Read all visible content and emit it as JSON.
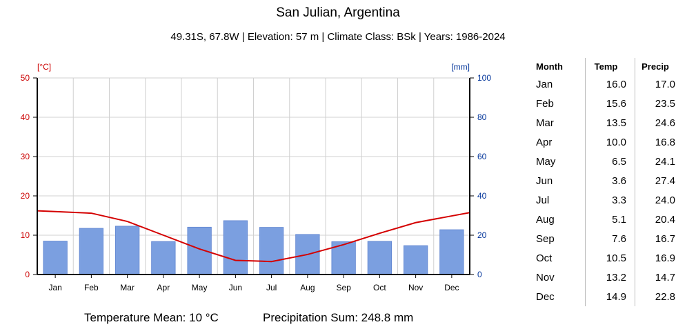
{
  "chart_data": {
    "type": "bar",
    "title": "San Julian, Argentina",
    "subtitle": "49.31S, 67.8W | Elevation: 57 m | Climate Class: BSk | Years: 1986-2024",
    "categories": [
      "Jan",
      "Feb",
      "Mar",
      "Apr",
      "May",
      "Jun",
      "Jul",
      "Aug",
      "Sep",
      "Oct",
      "Nov",
      "Dec"
    ],
    "series": [
      {
        "name": "Precip",
        "kind": "bar",
        "axis": "right",
        "color": "#7b9fe0",
        "values": [
          17.0,
          23.5,
          24.6,
          16.8,
          24.1,
          27.4,
          24.0,
          20.4,
          16.7,
          16.9,
          14.7,
          22.8
        ]
      },
      {
        "name": "Temp",
        "kind": "line",
        "axis": "left",
        "color": "#d40000",
        "values": [
          16.0,
          15.6,
          13.5,
          10.0,
          6.5,
          3.6,
          3.3,
          5.1,
          7.6,
          10.5,
          13.2,
          14.9
        ]
      }
    ],
    "y_left": {
      "unit_label": "[°C]",
      "ylim": [
        0,
        50
      ],
      "ticks": [
        "0",
        "10",
        "20",
        "30",
        "40",
        "50"
      ],
      "color": "#cc0000"
    },
    "y_right": {
      "unit_label": "[mm]",
      "ylim": [
        0,
        100
      ],
      "ticks": [
        "0",
        "20",
        "40",
        "60",
        "80",
        "100"
      ],
      "color": "#003399"
    },
    "grid": true
  },
  "summary": {
    "temp_mean": "Temperature Mean: 10 °C",
    "precip_sum": "Precipitation Sum: 248.8 mm"
  },
  "table": {
    "headers": [
      "Month",
      "Temp",
      "Precip"
    ],
    "rows": [
      [
        "Jan",
        "16.0",
        "17.0"
      ],
      [
        "Feb",
        "15.6",
        "23.5"
      ],
      [
        "Mar",
        "13.5",
        "24.6"
      ],
      [
        "Apr",
        "10.0",
        "16.8"
      ],
      [
        "May",
        "6.5",
        "24.1"
      ],
      [
        "Jun",
        "3.6",
        "27.4"
      ],
      [
        "Jul",
        "3.3",
        "24.0"
      ],
      [
        "Aug",
        "5.1",
        "20.4"
      ],
      [
        "Sep",
        "7.6",
        "16.7"
      ],
      [
        "Oct",
        "10.5",
        "16.9"
      ],
      [
        "Nov",
        "13.2",
        "14.7"
      ],
      [
        "Dec",
        "14.9",
        "22.8"
      ]
    ]
  }
}
